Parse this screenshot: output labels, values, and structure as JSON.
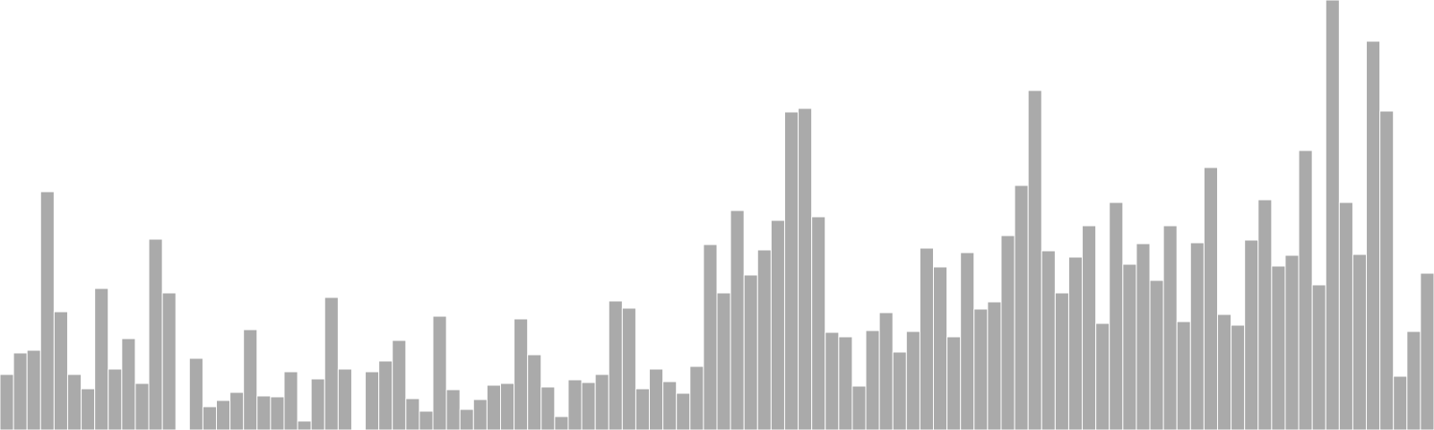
{
  "chart_data": {
    "type": "bar",
    "title": "",
    "xlabel": "",
    "ylabel": "",
    "ylim": [
      0,
      480
    ],
    "grid": false,
    "legend": "none",
    "color": "#aaaaaa",
    "series": [
      {
        "values": [
          62,
          86,
          89,
          266,
          132,
          62,
          46,
          158,
          68,
          102,
          52,
          213,
          153,
          0,
          80,
          26,
          33,
          42,
          112,
          38,
          37,
          65,
          10,
          57,
          148,
          68,
          0,
          65,
          77,
          100,
          35,
          21,
          127,
          45,
          23,
          34,
          50,
          52,
          124,
          84,
          48,
          15,
          56,
          53,
          62,
          144,
          136,
          46,
          68,
          54,
          41,
          71,
          207,
          153,
          245,
          173,
          201,
          234,
          355,
          359,
          238,
          109,
          104,
          49,
          111,
          131,
          87,
          110,
          203,
          182,
          104,
          198,
          135,
          143,
          217,
          273,
          379,
          200,
          153,
          193,
          228,
          119,
          254,
          185,
          208,
          167,
          228,
          121,
          209,
          293,
          129,
          117,
          212,
          257,
          183,
          195,
          312,
          162,
          480,
          254,
          196,
          434,
          356,
          60,
          110,
          175
        ]
      }
    ]
  }
}
